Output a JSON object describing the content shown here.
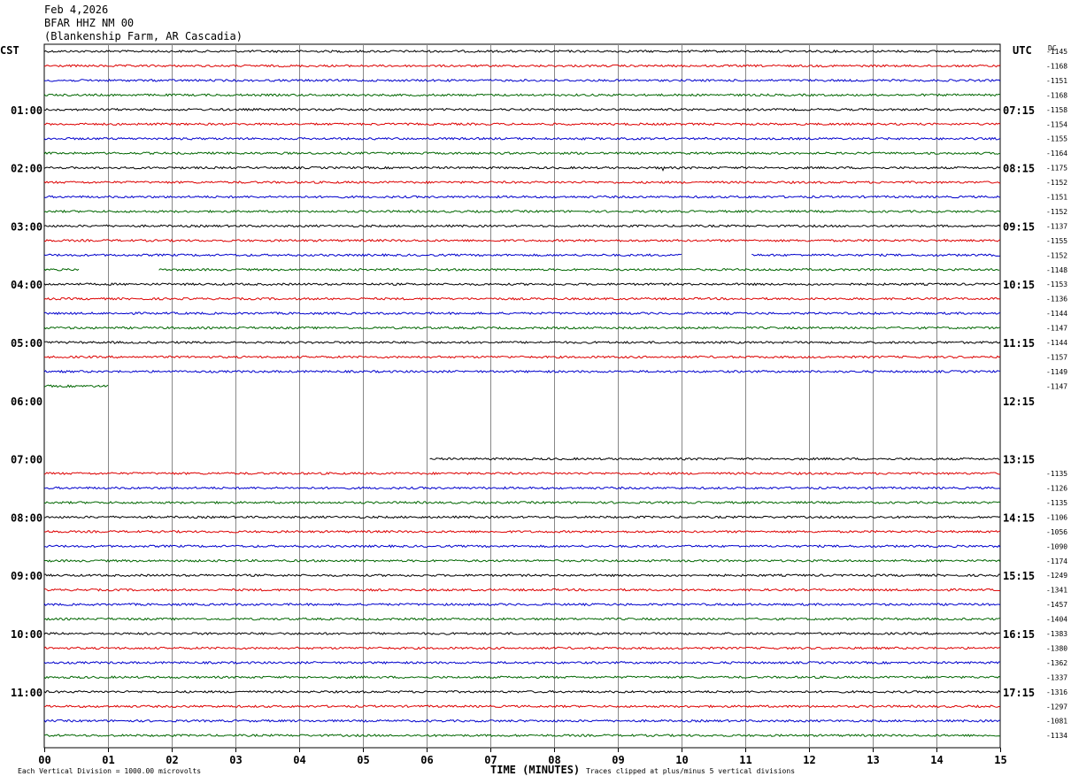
{
  "header": {
    "date": "Feb 4,2026",
    "station": "BFAR HHZ NM 00",
    "location": "(Blankenship Farm, AR Cascadia)"
  },
  "left_zone": "CST",
  "right_zone": "UTC",
  "dc_label": "DC",
  "footer": {
    "scale_note": "Each Vertical Division = 1000.00 microvolts",
    "clip_note": "Traces clipped at plus/minus 5 vertical divisions"
  },
  "colors": {
    "trace_cycle": [
      "#000000",
      "#dd0000",
      "#0000cc",
      "#006600"
    ],
    "grid": "#888888",
    "frame": "#000000"
  },
  "chart_data": {
    "type": "line",
    "title": "",
    "xlabel": "TIME (MINUTES)",
    "ylabel": "",
    "xlim": [
      0,
      15
    ],
    "x_ticks": [
      "00",
      "01",
      "02",
      "03",
      "04",
      "05",
      "06",
      "07",
      "08",
      "09",
      "10",
      "11",
      "12",
      "13",
      "14",
      "15"
    ],
    "hour_labels_left": [
      "01:00",
      "02:00",
      "03:00",
      "04:00",
      "05:00",
      "06:00",
      "07:00",
      "08:00",
      "09:00",
      "10:00",
      "11:00"
    ],
    "hour_labels_right": [
      "07:15",
      "08:15",
      "09:15",
      "10:15",
      "11:15",
      "12:15",
      "13:15",
      "14:15",
      "15:15",
      "16:15",
      "17:15"
    ],
    "grid": true,
    "rows_per_hour": 4,
    "row_minutes": 15,
    "dc_offsets": [
      "-1145",
      "-1168",
      "-1151",
      "-1168",
      "-1158",
      "-1154",
      "-1155",
      "-1164",
      "-1175",
      "-1152",
      "-1151",
      "-1152",
      "-1137",
      "-1155",
      "-1152",
      "-1148",
      "-1153",
      "-1136",
      "-1144",
      "-1147",
      "-1144",
      "-1157",
      "-1149",
      "-1147",
      "",
      "",
      "",
      "",
      "",
      "-1135",
      "-1126",
      "-1135",
      "-1106",
      "-1056",
      "-1090",
      "-1174",
      "-1249",
      "-1341",
      "-1457",
      "-1404",
      "-1383",
      "-1380",
      "-1362",
      "-1337",
      "-1316",
      "-1297",
      "-1081",
      "-1134"
    ],
    "traces": [
      {
        "row": 0,
        "segments": [
          [
            0,
            15
          ]
        ]
      },
      {
        "row": 1,
        "segments": [
          [
            0,
            15
          ]
        ]
      },
      {
        "row": 2,
        "segments": [
          [
            0,
            15
          ]
        ]
      },
      {
        "row": 3,
        "segments": [
          [
            0,
            15
          ]
        ]
      },
      {
        "row": 4,
        "segments": [
          [
            0,
            15
          ]
        ]
      },
      {
        "row": 5,
        "segments": [
          [
            0,
            15
          ]
        ]
      },
      {
        "row": 6,
        "segments": [
          [
            0,
            15
          ]
        ]
      },
      {
        "row": 7,
        "segments": [
          [
            0,
            15
          ]
        ]
      },
      {
        "row": 8,
        "segments": [
          [
            0,
            15
          ]
        ],
        "spike_minute": 9.72
      },
      {
        "row": 9,
        "segments": [
          [
            0,
            15
          ]
        ]
      },
      {
        "row": 10,
        "segments": [
          [
            0,
            15
          ]
        ]
      },
      {
        "row": 11,
        "segments": [
          [
            0,
            15
          ]
        ]
      },
      {
        "row": 12,
        "segments": [
          [
            0,
            15
          ]
        ]
      },
      {
        "row": 13,
        "segments": [
          [
            0,
            15
          ]
        ]
      },
      {
        "row": 14,
        "segments": [
          [
            0,
            10
          ],
          [
            11.1,
            15
          ]
        ]
      },
      {
        "row": 15,
        "segments": [
          [
            0,
            0.55
          ],
          [
            1.8,
            15
          ]
        ]
      },
      {
        "row": 16,
        "segments": [
          [
            0,
            15
          ]
        ]
      },
      {
        "row": 17,
        "segments": [
          [
            0,
            15
          ]
        ]
      },
      {
        "row": 18,
        "segments": [
          [
            0,
            15
          ]
        ]
      },
      {
        "row": 19,
        "segments": [
          [
            0,
            15
          ]
        ]
      },
      {
        "row": 20,
        "segments": [
          [
            0,
            15
          ]
        ]
      },
      {
        "row": 21,
        "segments": [
          [
            0,
            15
          ]
        ]
      },
      {
        "row": 22,
        "segments": [
          [
            0,
            15
          ]
        ]
      },
      {
        "row": 23,
        "segments": [
          [
            0,
            1.0
          ]
        ]
      },
      {
        "row": 24,
        "segments": []
      },
      {
        "row": 25,
        "segments": []
      },
      {
        "row": 26,
        "segments": []
      },
      {
        "row": 27,
        "segments": []
      },
      {
        "row": 28,
        "segments": [
          [
            6.05,
            15
          ]
        ]
      },
      {
        "row": 29,
        "segments": [
          [
            0,
            15
          ]
        ]
      },
      {
        "row": 30,
        "segments": [
          [
            0,
            15
          ]
        ]
      },
      {
        "row": 31,
        "segments": [
          [
            0,
            15
          ]
        ]
      },
      {
        "row": 32,
        "segments": [
          [
            0,
            15
          ]
        ]
      },
      {
        "row": 33,
        "segments": [
          [
            0,
            15
          ]
        ]
      },
      {
        "row": 34,
        "segments": [
          [
            0,
            15
          ]
        ]
      },
      {
        "row": 35,
        "segments": [
          [
            0,
            15
          ]
        ]
      },
      {
        "row": 36,
        "segments": [
          [
            0,
            15
          ]
        ]
      },
      {
        "row": 37,
        "segments": [
          [
            0,
            15
          ]
        ]
      },
      {
        "row": 38,
        "segments": [
          [
            0,
            15
          ]
        ]
      },
      {
        "row": 39,
        "segments": [
          [
            0,
            15
          ]
        ]
      },
      {
        "row": 40,
        "segments": [
          [
            0,
            15
          ]
        ]
      },
      {
        "row": 41,
        "segments": [
          [
            0,
            15
          ]
        ]
      },
      {
        "row": 42,
        "segments": [
          [
            0,
            15
          ]
        ]
      },
      {
        "row": 43,
        "segments": [
          [
            0,
            15
          ]
        ]
      },
      {
        "row": 44,
        "segments": [
          [
            0,
            15
          ]
        ]
      },
      {
        "row": 45,
        "segments": [
          [
            0,
            15
          ]
        ]
      },
      {
        "row": 46,
        "segments": [
          [
            0,
            15
          ]
        ]
      },
      {
        "row": 47,
        "segments": [
          [
            0,
            15
          ]
        ]
      }
    ]
  }
}
